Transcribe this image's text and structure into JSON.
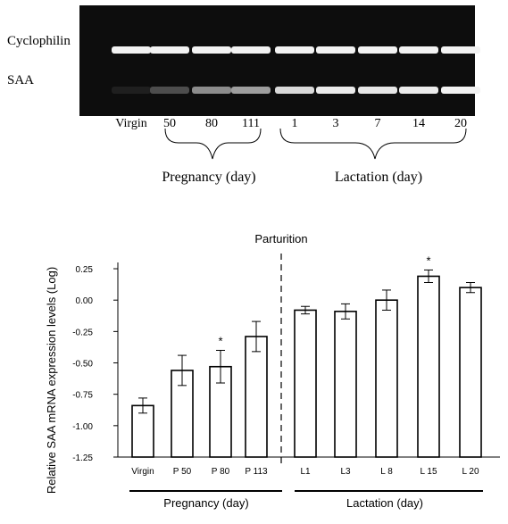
{
  "gel": {
    "row_labels": [
      "Cyclophilin",
      "SAA"
    ],
    "lanes": [
      "Virgin",
      "50",
      "80",
      "111",
      "1",
      "3",
      "7",
      "14",
      "20"
    ],
    "cyclophilin_intensity": [
      0.95,
      0.95,
      0.95,
      0.95,
      0.95,
      0.95,
      0.95,
      0.95,
      0.95
    ],
    "saa_intensity": [
      0.12,
      0.3,
      0.55,
      0.62,
      0.85,
      0.92,
      0.9,
      0.92,
      0.95
    ],
    "group_labels": [
      "Pregnancy (day)",
      "Lactation (day)"
    ]
  },
  "chart_data": {
    "type": "bar",
    "title": "",
    "ylabel": "Relative SAA mRNA expression levels (Log)",
    "xlabel": "",
    "categories": [
      "Virgin",
      "P 50",
      "P 80",
      "P 113",
      "L1",
      "L3",
      "L 8",
      "L 15",
      "L 20"
    ],
    "values": [
      -0.84,
      -0.56,
      -0.53,
      -0.29,
      -0.08,
      -0.09,
      0.0,
      0.19,
      0.1
    ],
    "errors": [
      0.06,
      0.12,
      0.13,
      0.12,
      0.03,
      0.06,
      0.08,
      0.05,
      0.04
    ],
    "significant": [
      false,
      false,
      true,
      false,
      false,
      false,
      false,
      true,
      false
    ],
    "ylim": [
      -1.25,
      0.3
    ],
    "yticks": [
      "0.25",
      "0.00",
      "-0.25",
      "-0.50",
      "-0.75",
      "-1.00",
      "-1.25"
    ],
    "ytick_values": [
      0.25,
      0.0,
      -0.25,
      -0.5,
      -0.75,
      -1.0,
      -1.25
    ],
    "annotation": "Parturition",
    "significance_mark": "*",
    "group_labels": [
      "Pregnancy (day)",
      "Lactation (day)"
    ],
    "bar_color": "#ffffff",
    "edge_color": "#000000"
  }
}
